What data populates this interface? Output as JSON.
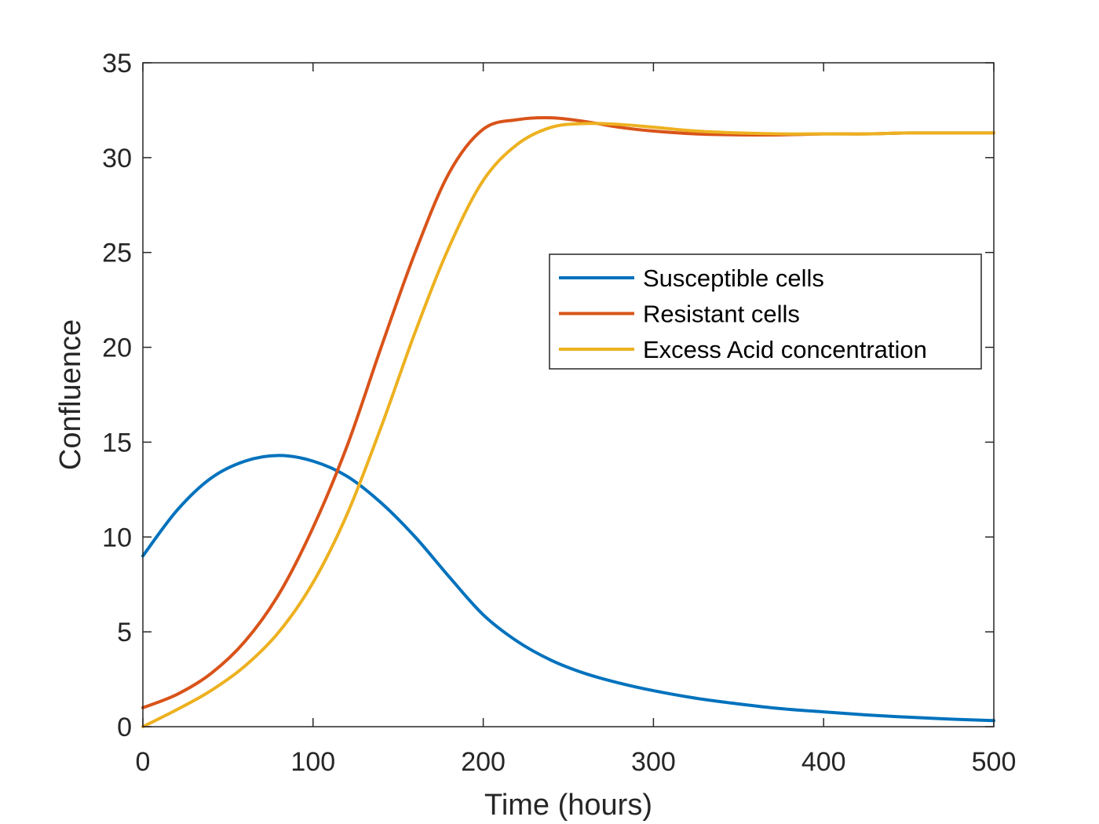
{
  "chart_data": {
    "type": "line",
    "xlabel": "Time (hours)",
    "ylabel": "Confluence",
    "xlim": [
      0,
      500
    ],
    "ylim": [
      0,
      35
    ],
    "xticks": [
      0,
      100,
      200,
      300,
      400,
      500
    ],
    "yticks": [
      0,
      5,
      10,
      15,
      20,
      25,
      30,
      35
    ],
    "grid": false,
    "legend_position": "upper-right-inside",
    "x": [
      0,
      20,
      40,
      60,
      80,
      100,
      120,
      140,
      160,
      180,
      200,
      220,
      240,
      260,
      280,
      300,
      325,
      350,
      375,
      400,
      425,
      450,
      475,
      500
    ],
    "series": [
      {
        "name": "Susceptible cells",
        "color": "#0072BD",
        "values": [
          9.0,
          11.4,
          13.1,
          14.0,
          14.3,
          14.0,
          13.2,
          11.8,
          10.0,
          7.9,
          5.9,
          4.5,
          3.5,
          2.8,
          2.3,
          1.9,
          1.5,
          1.2,
          0.95,
          0.78,
          0.62,
          0.5,
          0.4,
          0.32
        ]
      },
      {
        "name": "Resistant cells",
        "color": "#D95319",
        "values": [
          1.0,
          1.7,
          2.8,
          4.5,
          7.0,
          10.5,
          14.8,
          20.0,
          25.0,
          29.2,
          31.5,
          32.0,
          32.1,
          31.9,
          31.6,
          31.4,
          31.25,
          31.2,
          31.2,
          31.25,
          31.25,
          31.3,
          31.3,
          31.3
        ]
      },
      {
        "name": "Excess Acid concentration",
        "color": "#EDB120",
        "values": [
          0.0,
          0.9,
          1.9,
          3.2,
          5.0,
          7.6,
          11.2,
          15.8,
          20.8,
          25.3,
          28.8,
          30.7,
          31.6,
          31.8,
          31.75,
          31.6,
          31.4,
          31.3,
          31.25,
          31.25,
          31.25,
          31.3,
          31.3,
          31.3
        ]
      }
    ]
  }
}
